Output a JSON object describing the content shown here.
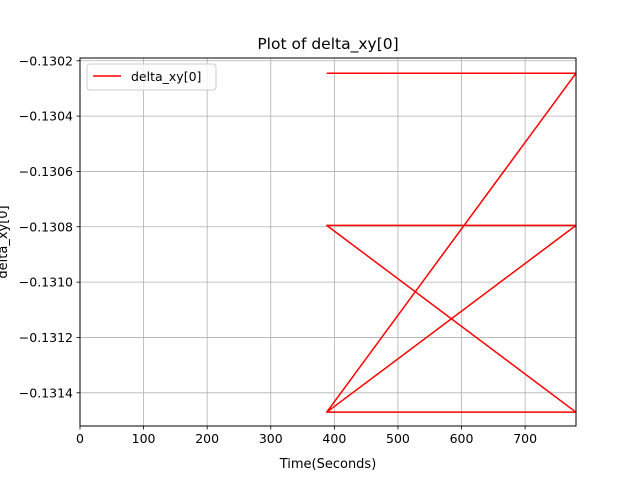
{
  "chart_data": {
    "type": "line",
    "title": "Plot of delta_xy[0]",
    "xlabel": "Time(Seconds)",
    "ylabel": "delta_xy[0]",
    "xlim": [
      0,
      780
    ],
    "ylim": [
      -0.13152,
      -0.13019
    ],
    "xticks": [
      0,
      100,
      200,
      300,
      400,
      500,
      600,
      700
    ],
    "xtick_labels": [
      "0",
      "100",
      "200",
      "300",
      "400",
      "500",
      "600",
      "700"
    ],
    "yticks": [
      -0.1302,
      -0.1304,
      -0.1306,
      -0.1308,
      -0.131,
      -0.1312,
      -0.1314
    ],
    "ytick_labels": [
      "−0.1302",
      "−0.1304",
      "−0.1306",
      "−0.1308",
      "−0.1310",
      "−0.1312",
      "−0.1314"
    ],
    "grid": true,
    "legend_position": "upper-left",
    "series": [
      {
        "name": "delta_xy[0]",
        "color": "#ff0000",
        "x": [
          388,
          780,
          388,
          780,
          388,
          780,
          388,
          780
        ],
        "y": [
          -0.130245,
          -0.130245,
          -0.13147,
          -0.13147,
          -0.130795,
          -0.130795,
          -0.13147,
          -0.13147
        ]
      }
    ]
  }
}
